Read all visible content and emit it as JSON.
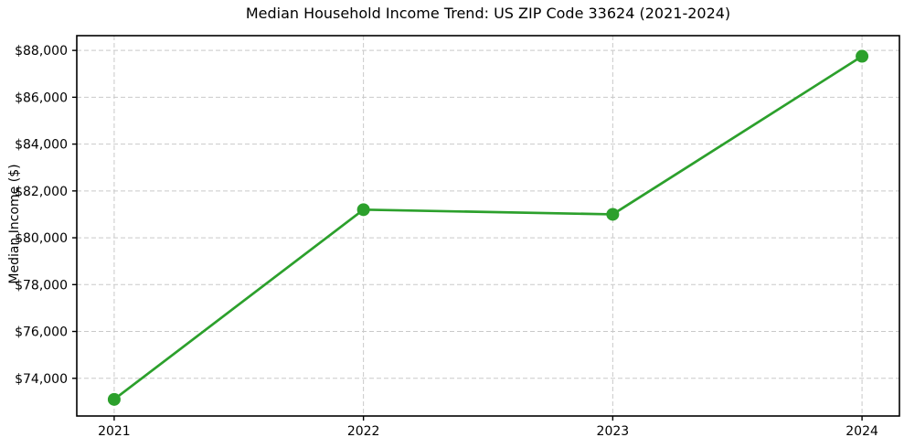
{
  "chart_data": {
    "type": "line",
    "title": "Median Household Income Trend: US ZIP Code 33624 (2021-2024)",
    "xlabel": "",
    "ylabel": "Median Income ($)",
    "x": [
      2021,
      2022,
      2023,
      2024
    ],
    "x_tick_labels": [
      "2021",
      "2022",
      "2023",
      "2024"
    ],
    "values": [
      73100,
      81200,
      81000,
      87750
    ],
    "y_ticks": [
      74000,
      76000,
      78000,
      80000,
      82000,
      84000,
      86000,
      88000
    ],
    "y_tick_labels": [
      "$74,000",
      "$76,000",
      "$78,000",
      "$80,000",
      "$82,000",
      "$84,000",
      "$86,000",
      "$88,000"
    ],
    "xlim": [
      2020.85,
      2024.15
    ],
    "ylim": [
      72390,
      88630
    ],
    "grid": true,
    "legend": false,
    "marker": "circle",
    "line_color": "#2ca02c",
    "marker_color": "#2ca02c",
    "grid_color": "#c9c9c9",
    "axis_color": "#000000",
    "background_color": "#ffffff"
  }
}
